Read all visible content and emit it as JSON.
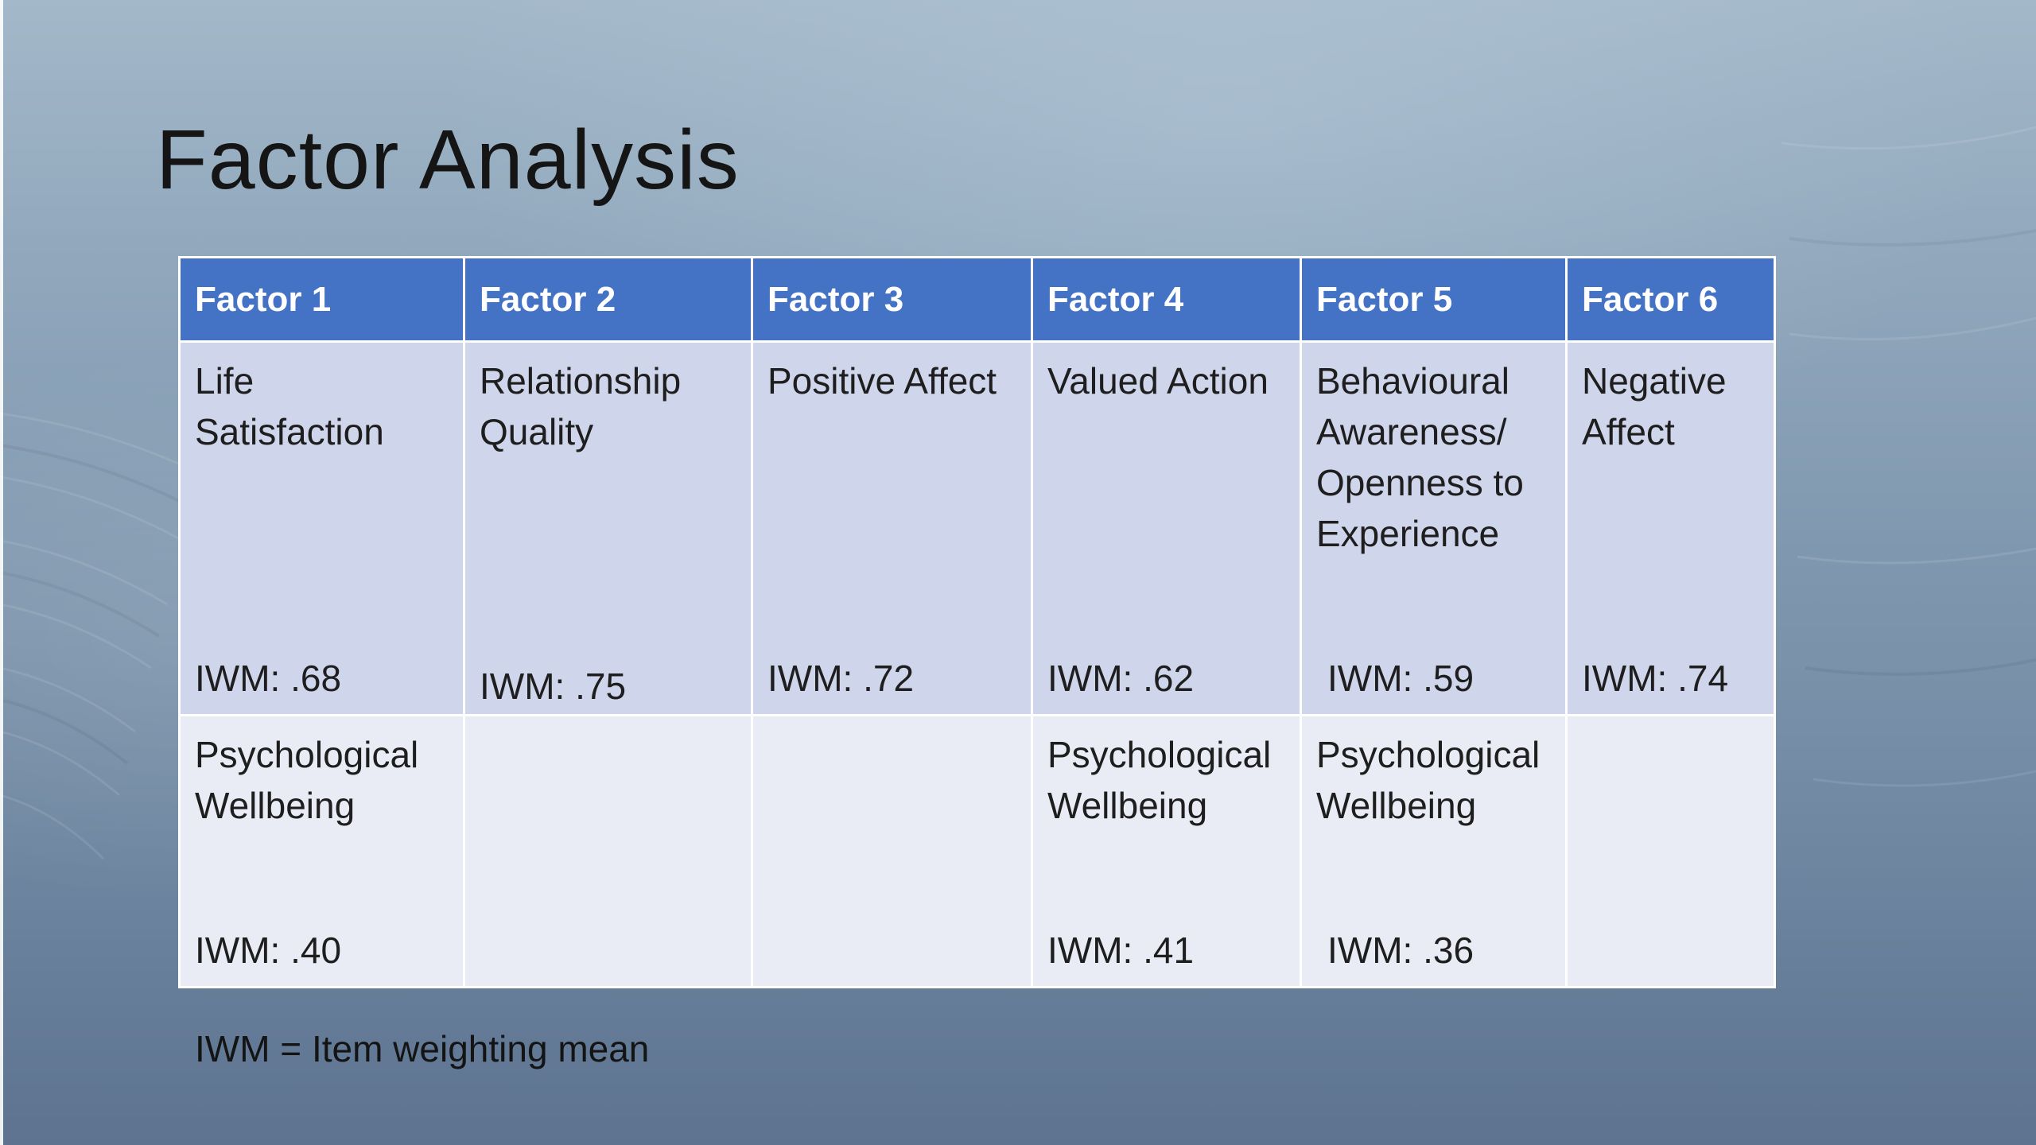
{
  "slide": {
    "title": "Factor Analysis",
    "footnote": "IWM = Item weighting mean"
  },
  "table": {
    "headers": [
      "Factor 1",
      "Factor 2",
      "Factor 3",
      "Factor 4",
      "Factor 5",
      "Factor 6"
    ],
    "rows": [
      [
        {
          "name": "Life Satisfaction",
          "iwm": "IWM: .68"
        },
        {
          "name": "Relationship Quality",
          "iwm": "IWM: .75"
        },
        {
          "name": "Positive Affect",
          "iwm": "IWM: .72"
        },
        {
          "name": "Valued Action",
          "iwm": "IWM: .62"
        },
        {
          "name": "Behavioural Awareness/ Openness to Experience",
          "iwm": "IWM: .59"
        },
        {
          "name": "Negative Affect",
          "iwm": "IWM: .74"
        }
      ],
      [
        {
          "name": "Psychological Wellbeing",
          "iwm": "IWM: .40"
        },
        {
          "name": "",
          "iwm": ""
        },
        {
          "name": "",
          "iwm": ""
        },
        {
          "name": "Psychological Wellbeing",
          "iwm": "IWM: .41"
        },
        {
          "name": "Psychological Wellbeing",
          "iwm": "IWM: .36"
        },
        {
          "name": "",
          "iwm": ""
        }
      ]
    ]
  },
  "colors": {
    "header_bg": "#4472c4",
    "row1_bg": "#cfd5ea",
    "row2_bg": "#e9ebf5",
    "header_text": "#ffffff"
  }
}
